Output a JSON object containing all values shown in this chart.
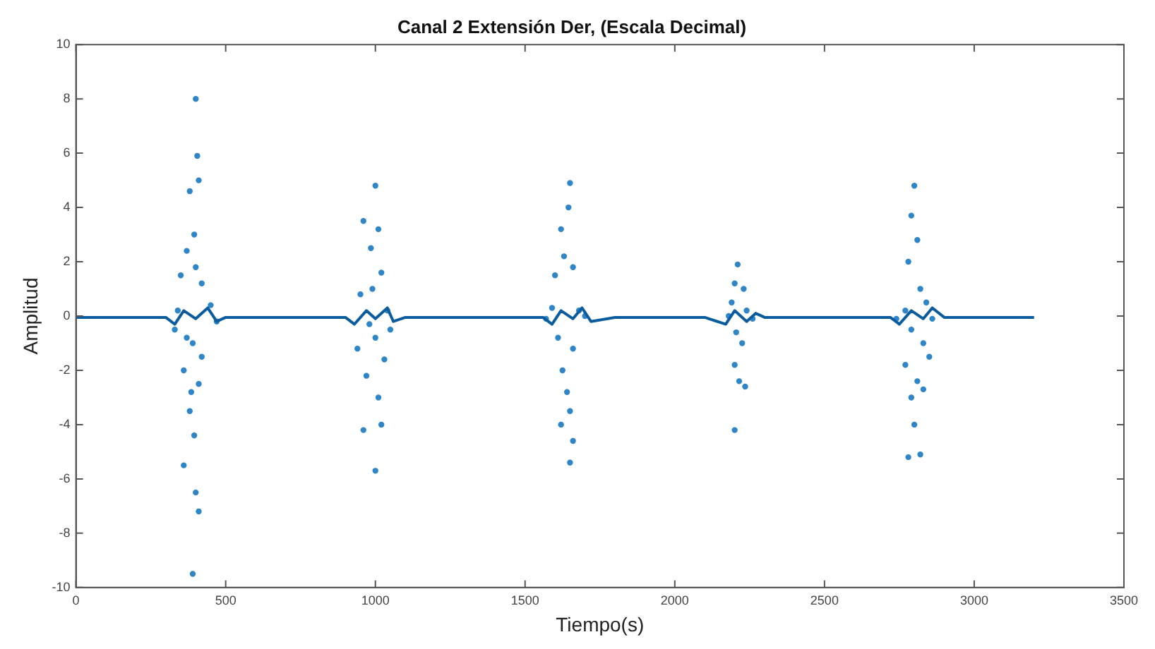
{
  "chart_data": {
    "type": "scatter",
    "title": "Canal 2 Extensión Der, (Escala Decimal)",
    "xlabel": "Tiempo(s)",
    "ylabel": "Amplitud",
    "xlim": [
      0,
      3500
    ],
    "xticks": [
      0,
      500,
      1000,
      1500,
      2000,
      2500,
      3000,
      3500
    ],
    "ylim": [
      -10,
      10
    ],
    "yticks": [
      -10,
      -8,
      -6,
      -4,
      -2,
      0,
      2,
      4,
      6,
      8,
      10
    ],
    "grid": false,
    "legend": false,
    "series": [
      {
        "marker": "circle",
        "color": "#2e86c8",
        "x": [
          400,
          405,
          380,
          410,
          370,
          395,
          350,
          420,
          340,
          390,
          360,
          410,
          380,
          395,
          360,
          400,
          410,
          390,
          450,
          470,
          330,
          420,
          370,
          400,
          385,
          1000,
          960,
          1010,
          985,
          1020,
          950,
          1000,
          1030,
          970,
          1010,
          960,
          1000,
          1040,
          980,
          990,
          1050,
          940,
          1020,
          1650,
          1645,
          1620,
          1630,
          1600,
          1660,
          1590,
          1680,
          1610,
          1660,
          1625,
          1640,
          1650,
          1620,
          1660,
          1650,
          1700,
          1570,
          2210,
          2200,
          2230,
          2190,
          2240,
          2205,
          2225,
          2200,
          2215,
          2235,
          2200,
          2180,
          2260,
          2800,
          2790,
          2810,
          2780,
          2820,
          2770,
          2840,
          2790,
          2830,
          2770,
          2810,
          2850,
          2790,
          2830,
          2800,
          2820,
          2780,
          2860,
          2740
        ],
        "values": [
          8.0,
          5.9,
          4.6,
          5.0,
          2.4,
          3.0,
          1.5,
          1.2,
          0.2,
          -1.0,
          -2.0,
          -2.5,
          -3.5,
          -4.4,
          -5.5,
          -6.5,
          -7.2,
          -9.5,
          0.4,
          -0.2,
          -0.5,
          -1.5,
          -0.8,
          1.8,
          -2.8,
          4.8,
          3.5,
          3.2,
          2.5,
          1.6,
          0.8,
          -0.8,
          -1.6,
          -2.2,
          -3.0,
          -4.2,
          -5.7,
          0.2,
          -0.3,
          1.0,
          -0.5,
          -1.2,
          -4.0,
          4.9,
          4.0,
          3.2,
          2.2,
          1.5,
          1.8,
          0.3,
          0.2,
          -0.8,
          -1.2,
          -2.0,
          -2.8,
          -3.5,
          -4.0,
          -4.6,
          -5.4,
          0.0,
          -0.1,
          1.9,
          1.2,
          1.0,
          0.5,
          0.2,
          -0.6,
          -1.0,
          -1.8,
          -2.4,
          -2.6,
          -4.2,
          0.0,
          -0.1,
          4.8,
          3.7,
          2.8,
          2.0,
          1.0,
          0.2,
          0.5,
          -0.5,
          -1.0,
          -1.8,
          -2.4,
          -1.5,
          -3.0,
          -2.7,
          -4.0,
          -5.1,
          -5.2,
          -0.1,
          -0.1
        ]
      },
      {
        "type": "line",
        "marker": "none",
        "color": "#0b5c9e",
        "x": [
          0,
          300,
          330,
          360,
          400,
          440,
          470,
          500,
          900,
          930,
          970,
          1000,
          1040,
          1060,
          1100,
          1560,
          1590,
          1620,
          1660,
          1690,
          1720,
          1800,
          2100,
          2170,
          2200,
          2240,
          2270,
          2300,
          2720,
          2750,
          2790,
          2830,
          2860,
          2900,
          3200
        ],
        "values": [
          -0.05,
          -0.05,
          -0.3,
          0.2,
          -0.1,
          0.3,
          -0.2,
          -0.05,
          -0.05,
          -0.3,
          0.2,
          -0.1,
          0.3,
          -0.2,
          -0.05,
          -0.05,
          -0.3,
          0.2,
          -0.1,
          0.3,
          -0.2,
          -0.05,
          -0.05,
          -0.3,
          0.2,
          -0.2,
          0.1,
          -0.05,
          -0.05,
          -0.3,
          0.2,
          -0.1,
          0.3,
          -0.05,
          -0.05
        ]
      }
    ]
  }
}
